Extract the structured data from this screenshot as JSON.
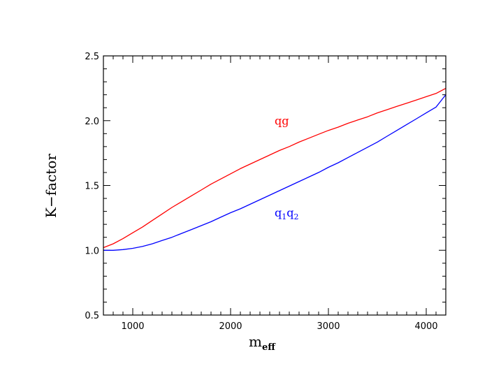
{
  "chart_data": {
    "type": "line",
    "title": "",
    "xlabel": "m",
    "xlabel_sub": "eff",
    "ylabel": "K−factor",
    "xlim": [
      700,
      4200
    ],
    "ylim": [
      0.5,
      2.5
    ],
    "xticks": [
      1000,
      2000,
      3000,
      4000
    ],
    "xtick_labels": [
      "1000",
      "2000",
      "3000",
      "4000"
    ],
    "yticks": [
      0.5,
      1.0,
      1.5,
      2.0,
      2.5
    ],
    "ytick_labels": [
      "0.5",
      "1.0",
      "1.5",
      "2.0",
      "2.5"
    ],
    "x_minor_step": 100,
    "y_minor_step": 0.1,
    "grid": false,
    "series": [
      {
        "name": "qg",
        "color": "#ff0000",
        "x": [
          700,
          800,
          900,
          1000,
          1100,
          1200,
          1300,
          1400,
          1500,
          1600,
          1700,
          1800,
          1900,
          2000,
          2100,
          2200,
          2300,
          2400,
          2500,
          2600,
          2700,
          2800,
          2900,
          3000,
          3100,
          3200,
          3300,
          3400,
          3500,
          3600,
          3700,
          3800,
          3900,
          4000,
          4100,
          4200
        ],
        "y": [
          1.02,
          1.05,
          1.09,
          1.135,
          1.18,
          1.23,
          1.28,
          1.33,
          1.375,
          1.42,
          1.465,
          1.51,
          1.55,
          1.59,
          1.63,
          1.665,
          1.7,
          1.735,
          1.77,
          1.8,
          1.835,
          1.865,
          1.895,
          1.925,
          1.95,
          1.98,
          2.005,
          2.03,
          2.06,
          2.085,
          2.11,
          2.135,
          2.16,
          2.185,
          2.21,
          2.25
        ]
      },
      {
        "name": "q1q2",
        "color": "#0000ff",
        "x": [
          700,
          800,
          900,
          1000,
          1100,
          1200,
          1300,
          1400,
          1500,
          1600,
          1700,
          1800,
          1900,
          2000,
          2100,
          2200,
          2300,
          2400,
          2500,
          2600,
          2700,
          2800,
          2900,
          3000,
          3100,
          3200,
          3300,
          3400,
          3500,
          3600,
          3700,
          3800,
          3900,
          4000,
          4100,
          4200
        ],
        "y": [
          1.0,
          1.0,
          1.005,
          1.015,
          1.03,
          1.05,
          1.075,
          1.1,
          1.13,
          1.16,
          1.19,
          1.22,
          1.255,
          1.29,
          1.32,
          1.355,
          1.39,
          1.425,
          1.46,
          1.495,
          1.53,
          1.565,
          1.6,
          1.64,
          1.675,
          1.715,
          1.755,
          1.795,
          1.835,
          1.88,
          1.925,
          1.97,
          2.015,
          2.06,
          2.105,
          2.2
        ]
      }
    ],
    "annotations": [
      {
        "text": "qg",
        "color": "#ff0000",
        "x": 2450,
        "y": 1.97
      },
      {
        "text": "q",
        "sub1": "1",
        "text2": "q",
        "sub2": "2",
        "color": "#0000ff",
        "x": 2450,
        "y": 1.26
      }
    ]
  }
}
